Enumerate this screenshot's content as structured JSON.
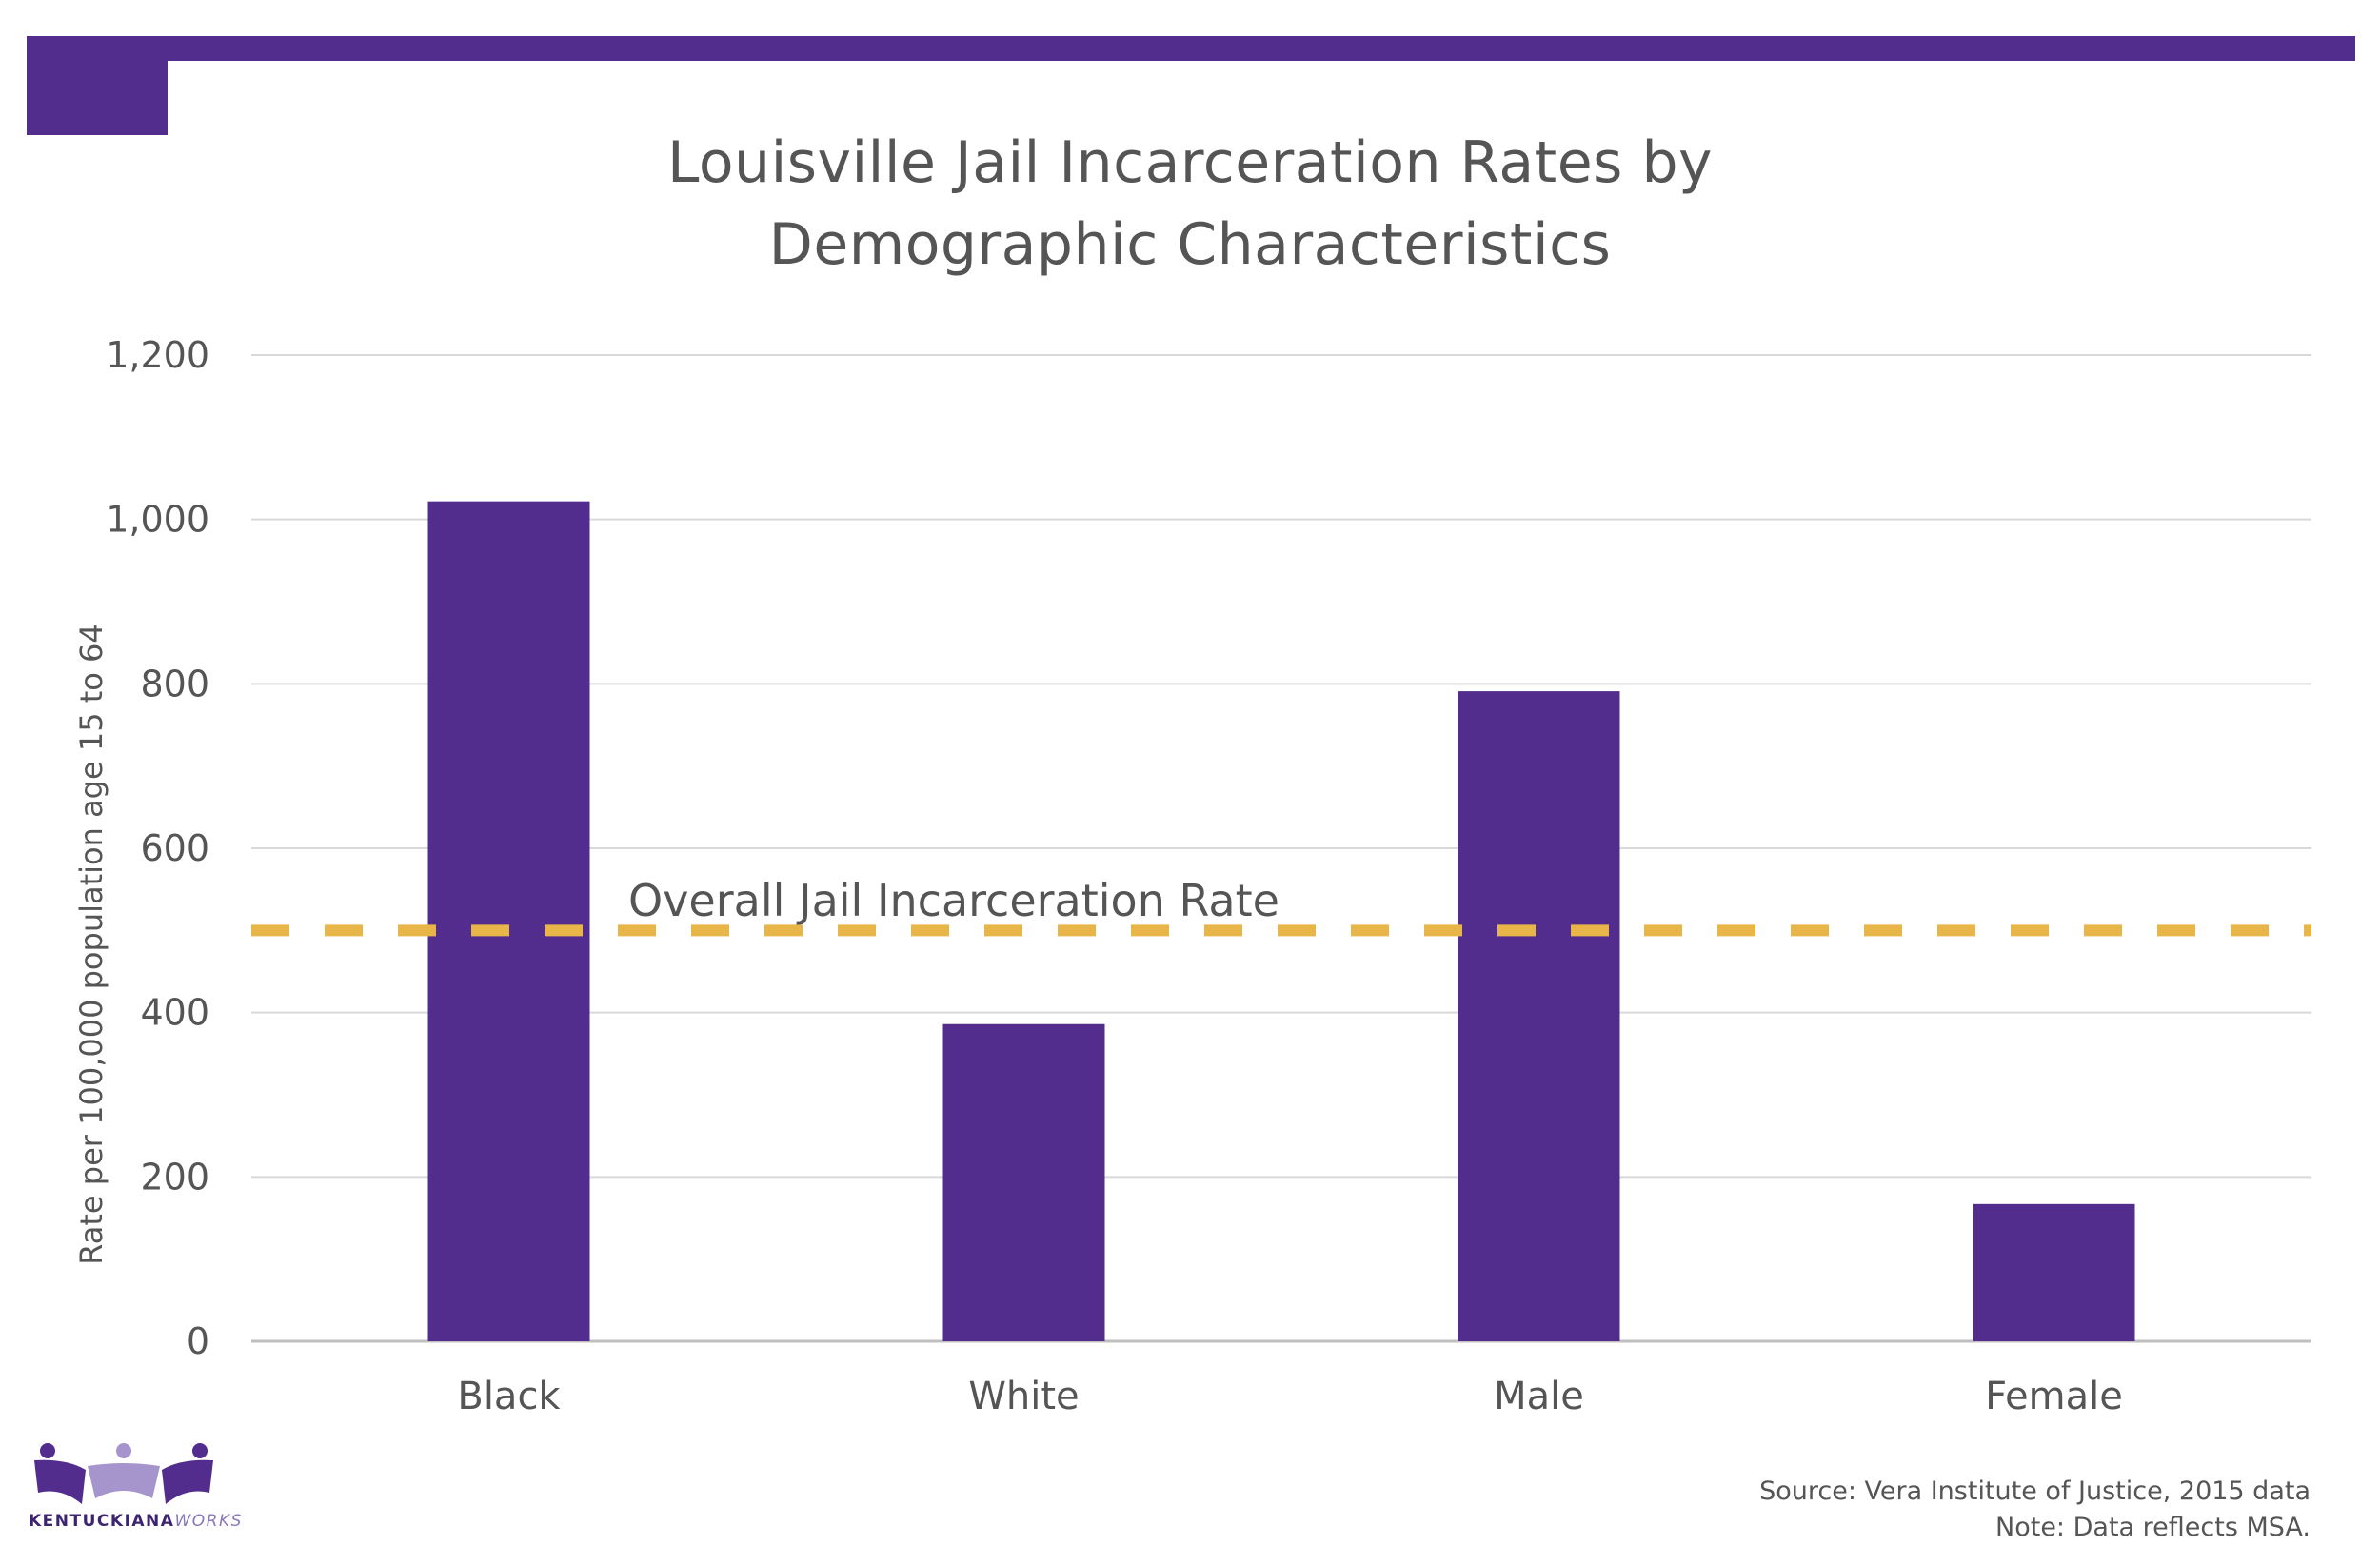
{
  "chart_data": {
    "type": "bar",
    "title": "Louisville Jail Incarceration Rates by\nDemographic Characteristics",
    "ylabel": "Rate per 100,000 population age 15 to 64",
    "xlabel": "",
    "categories": [
      "Black",
      "White",
      "Male",
      "Female"
    ],
    "values": [
      1022,
      386,
      791,
      167
    ],
    "ylim": [
      0,
      1200
    ],
    "yticks": [
      0,
      200,
      400,
      600,
      800,
      1000,
      1200
    ],
    "ytick_labels": [
      "0",
      "200",
      "400",
      "600",
      "800",
      "1,000",
      "1,200"
    ],
    "grid": true,
    "bar_color": "#532d8d",
    "reference_line": {
      "label": "Overall Jail Incarceration Rate",
      "value": 500,
      "color": "#e8b548",
      "style": "dashed"
    }
  },
  "notes": {
    "source": "Source: Vera Institute of Justice, 2015 data",
    "note": "Note: Data reflects MSA."
  },
  "logo": {
    "name_main": "KENTUCKIANA",
    "name_accent": "WORKS"
  },
  "colors": {
    "accent": "#532d8d",
    "logo_light": "#a695cc"
  }
}
